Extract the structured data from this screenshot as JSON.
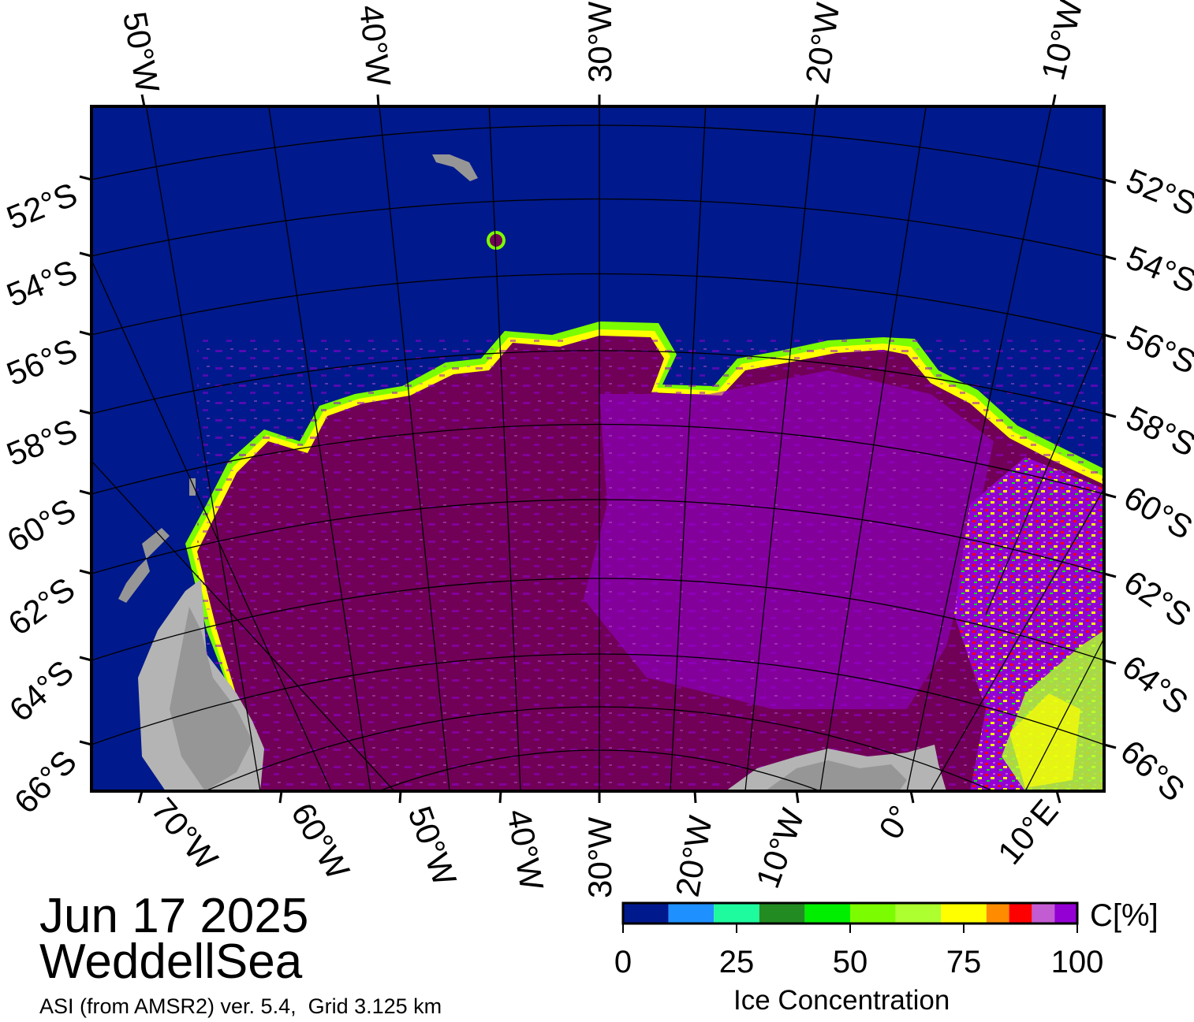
{
  "date": "Jun 17 2025",
  "region": "WeddellSea",
  "source": "ASI (from AMSR2) ver. 5.4,  Grid 3.125 km",
  "colorbar": {
    "unit_label": "C[%]",
    "title": "Ice Concentration",
    "ticks": [
      "0",
      "25",
      "50",
      "75",
      "100"
    ],
    "colors": [
      "#00198c",
      "#1e90ff",
      "#1efa9e",
      "#228b22",
      "#00ee00",
      "#7cfc00",
      "#adff2f",
      "#ffff00",
      "#ff8c00",
      "#ff0000",
      "#c35bd2",
      "#9400d3"
    ]
  },
  "map_colors": {
    "open_water": "#00198c",
    "dense_ice": "#710057",
    "medium_ice": "#9400d3",
    "land": "#b4b4b4",
    "land_dark": "#969696"
  },
  "lon_labels_top": [
    "50°W",
    "40°W",
    "30°W",
    "20°W",
    "10°W"
  ],
  "lon_labels_bottom": [
    "70°W",
    "60°W",
    "50°W",
    "40°W",
    "30°W",
    "20°W",
    "10°W",
    "0°",
    "10°E"
  ],
  "lat_labels_left": [
    "52°S",
    "54°S",
    "56°S",
    "58°S",
    "60°S",
    "62°S",
    "64°S",
    "66°S"
  ],
  "lat_labels_right": [
    "52°S",
    "54°S",
    "56°S",
    "58°S",
    "60°S",
    "62°S",
    "64°S",
    "66°S"
  ]
}
